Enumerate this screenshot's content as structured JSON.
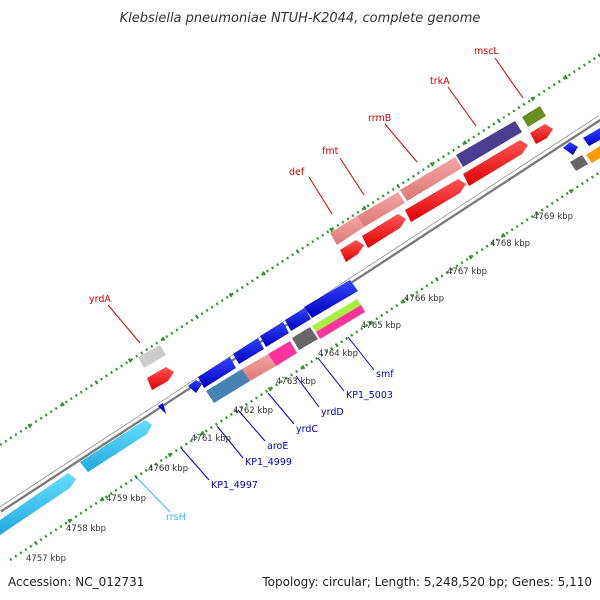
{
  "title": "Klebsiella pneumoniae NTUH-K2044, complete genome",
  "footer": {
    "accession": "Accession: NC_012731",
    "summary": "Topology: circular; Length: 5,248,520 bp; Genes: 5,110"
  },
  "kbp_labels": [
    {
      "text": "4757 kbp"
    },
    {
      "text": "4758 kbp"
    },
    {
      "text": "4759 kbp"
    },
    {
      "text": "4760 kbp"
    },
    {
      "text": "4761 kbp"
    },
    {
      "text": "4762 kbp"
    },
    {
      "text": "4763 kbp"
    },
    {
      "text": "4764 kbp"
    },
    {
      "text": "4765 kbp"
    },
    {
      "text": "4766 kbp"
    },
    {
      "text": "4767 kbp"
    },
    {
      "text": "4768 kbp"
    },
    {
      "text": "4769 kbp"
    }
  ],
  "gene_labels_forward": [
    {
      "text": "yrdA",
      "color": "#cc0000"
    },
    {
      "text": "def",
      "color": "#cc0000"
    },
    {
      "text": "fmt",
      "color": "#cc0000"
    },
    {
      "text": "rrmB",
      "color": "#cc0000"
    },
    {
      "text": "trkA",
      "color": "#cc0000"
    },
    {
      "text": "mscL",
      "color": "#cc0000"
    }
  ],
  "gene_labels_reverse": [
    {
      "text": "rrsH",
      "color": "#33bbee"
    },
    {
      "text": "KP1_4997",
      "color": "#0000bb"
    },
    {
      "text": "KP1_4999",
      "color": "#0000bb"
    },
    {
      "text": "aroE",
      "color": "#0000bb"
    },
    {
      "text": "yrdC",
      "color": "#0000bb"
    },
    {
      "text": "yrdD",
      "color": "#0000bb"
    },
    {
      "text": "KP1_5003",
      "color": "#0000bb"
    },
    {
      "text": "smf",
      "color": "#0000bb"
    }
  ],
  "colors": {
    "cds_red": "#ff0000",
    "cds_blue": "#0000ee",
    "rrna_cyan": "#33ccff",
    "pink": "#ee8888",
    "magenta": "#ff3399",
    "purple": "#4b3d8f",
    "olive": "#6b8e23",
    "gray": "#cccccc",
    "darkgray": "#666666",
    "steel": "#4682b4",
    "lime": "#aaee44",
    "orange": "#ff9900",
    "tick_green": "#2e8a2e"
  }
}
